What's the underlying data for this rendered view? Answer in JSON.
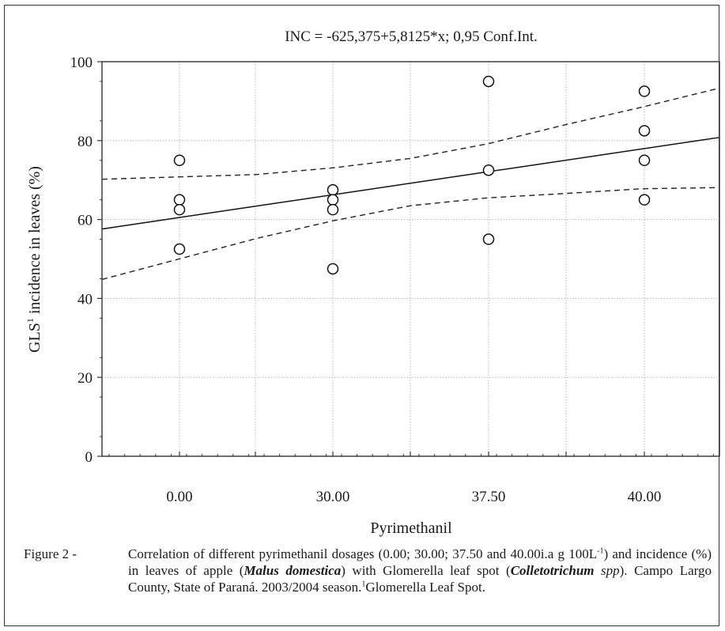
{
  "chart_data": {
    "type": "scatter",
    "title": "INC = -625,375+5,8125*x; 0,95 Conf.Int.",
    "xlabel": "Pyrimethanil",
    "ylabel": "GLS",
    "ylabel_sup": "1",
    "ylabel_rest": " incidence in leaves (%)",
    "categories": [
      "0.00",
      "30.00",
      "37.50",
      "40.00"
    ],
    "ylim": [
      0,
      100
    ],
    "yticks": [
      0,
      20,
      40,
      60,
      80,
      100
    ],
    "grid": true,
    "points": [
      {
        "category": "0.00",
        "values": [
          75,
          65,
          62.5,
          52.5
        ]
      },
      {
        "category": "30.00",
        "values": [
          67.5,
          65,
          62.5,
          47.5
        ]
      },
      {
        "category": "37.50",
        "values": [
          95,
          72.5,
          55
        ]
      },
      {
        "category": "40.00",
        "values": [
          92.5,
          82.5,
          75,
          65
        ]
      }
    ],
    "fit_line": {
      "start": 57.6,
      "end": 80.8
    },
    "conf_upper": [
      70.2,
      70.8,
      71.4,
      73.1,
      75.5,
      79.2,
      84.0,
      88.5,
      93.3
    ],
    "conf_lower": [
      44.8,
      50.0,
      55.2,
      59.7,
      63.5,
      65.5,
      66.6,
      67.8,
      68.1
    ]
  },
  "caption": {
    "label": "Figure 2 - ",
    "text_1": "Correlation of different pyrimethanil dosages (0.00; 30.00; 37.50 and 40.00i.a g 100L",
    "sup_1": "-1",
    "text_2": ") and incidence (%) in leaves of apple (",
    "italic_bold_1": "Malus domestica",
    "text_3": ") with Glomerella leaf spot (",
    "italic_bold_2": "Colletotrichum",
    "italic_1": " spp",
    "text_4": "). Campo Largo County, State of Paraná. 2003/2004 season.",
    "sup_2": "1",
    "text_5": "Glomerella Leaf Spot."
  }
}
